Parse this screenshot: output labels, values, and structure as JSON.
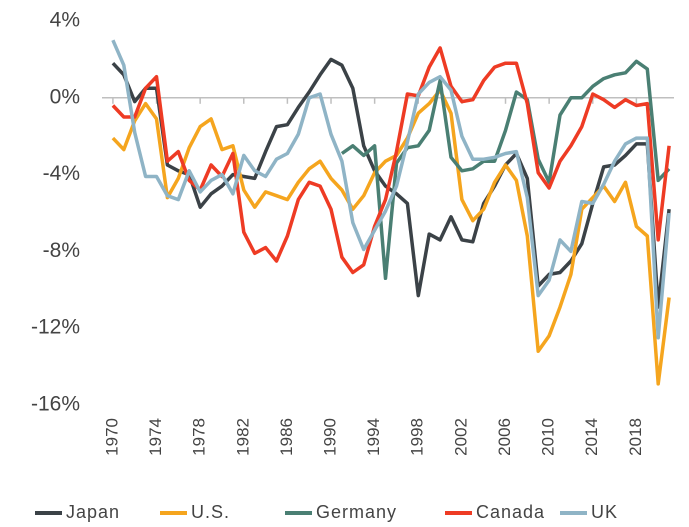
{
  "chart_data": {
    "type": "line",
    "x": [
      1970,
      1971,
      1972,
      1973,
      1974,
      1975,
      1976,
      1977,
      1978,
      1979,
      1980,
      1981,
      1982,
      1983,
      1984,
      1985,
      1986,
      1987,
      1988,
      1989,
      1990,
      1991,
      1992,
      1993,
      1994,
      1995,
      1996,
      1997,
      1998,
      1999,
      2000,
      2001,
      2002,
      2003,
      2004,
      2005,
      2006,
      2007,
      2008,
      2009,
      2010,
      2011,
      2012,
      2013,
      2014,
      2015,
      2016,
      2017,
      2018,
      2019,
      2020,
      2021
    ],
    "xlim": [
      1969,
      2022
    ],
    "xticks": [
      1970,
      1974,
      1978,
      1982,
      1986,
      1990,
      1994,
      1998,
      2002,
      2006,
      2010,
      2014,
      2018
    ],
    "ylim": [
      -16,
      4
    ],
    "yticks": [
      {
        "value": 4,
        "label": "4%"
      },
      {
        "value": 0,
        "label": "0%"
      },
      {
        "value": -4,
        "label": "-4%"
      },
      {
        "value": -8,
        "label": "-8%"
      },
      {
        "value": -12,
        "label": "-12%"
      },
      {
        "value": -16,
        "label": "-16%"
      }
    ],
    "legend": "bottom",
    "series": [
      {
        "name": "Japan",
        "color": "#3b4247",
        "values": [
          1.8,
          1.2,
          -0.2,
          0.5,
          0.5,
          -3.5,
          -3.8,
          -4.0,
          -5.7,
          -5.0,
          -4.6,
          -4.0,
          -4.1,
          -4.2,
          -2.8,
          -1.5,
          -1.4,
          -0.5,
          0.3,
          1.2,
          2.0,
          1.7,
          0.5,
          -2.5,
          -3.8,
          -4.6,
          -5.0,
          -5.5,
          -10.3,
          -7.1,
          -7.4,
          -6.2,
          -7.4,
          -7.5,
          -5.5,
          -4.6,
          -3.5,
          -2.9,
          -4.2,
          -9.8,
          -9.2,
          -9.1,
          -8.5,
          -7.6,
          -5.5,
          -3.6,
          -3.5,
          -3.0,
          -2.4,
          -2.4,
          -10.9,
          -5.8
        ]
      },
      {
        "name": "U.S.",
        "color": "#f5a51e",
        "values": [
          -2.1,
          -2.7,
          -1.2,
          -0.3,
          -1.1,
          -5.2,
          -4.2,
          -2.6,
          -1.5,
          -1.1,
          -2.7,
          -2.5,
          -4.8,
          -5.7,
          -4.9,
          -5.1,
          -5.3,
          -4.4,
          -3.7,
          -3.3,
          -4.2,
          -4.8,
          -5.8,
          -5.1,
          -3.9,
          -3.3,
          -3.0,
          -2.1,
          -0.8,
          -0.3,
          0.4,
          -0.8,
          -5.3,
          -6.4,
          -5.8,
          -4.4,
          -3.5,
          -4.3,
          -7.2,
          -13.2,
          -12.4,
          -10.9,
          -9.2,
          -5.8,
          -5.2,
          -4.6,
          -5.4,
          -4.4,
          -6.7,
          -7.2,
          -14.9,
          -10.4
        ]
      },
      {
        "name": "Germany",
        "color": "#4a7f73",
        "values": [
          null,
          null,
          null,
          null,
          null,
          null,
          null,
          null,
          null,
          null,
          null,
          null,
          null,
          null,
          null,
          null,
          null,
          null,
          null,
          null,
          null,
          -2.9,
          -2.5,
          -3.0,
          -2.5,
          -9.4,
          -3.4,
          -2.6,
          -2.5,
          -1.7,
          0.9,
          -3.1,
          -3.8,
          -3.7,
          -3.3,
          -3.3,
          -1.7,
          0.3,
          -0.1,
          -3.2,
          -4.4,
          -0.9,
          0.0,
          0.0,
          0.6,
          1.0,
          1.2,
          1.3,
          1.9,
          1.5,
          -4.3,
          -3.7
        ]
      },
      {
        "name": "Canada",
        "color": "#ee3b24",
        "values": [
          -0.4,
          -1.0,
          -1.0,
          0.5,
          1.1,
          -3.3,
          -2.8,
          -4.3,
          -4.8,
          -3.5,
          -4.1,
          -2.9,
          -7.0,
          -8.1,
          -7.8,
          -8.5,
          -7.2,
          -5.3,
          -4.4,
          -4.6,
          -5.8,
          -8.3,
          -9.1,
          -8.7,
          -6.7,
          -5.3,
          -2.8,
          0.2,
          0.1,
          1.6,
          2.6,
          0.6,
          -0.2,
          -0.1,
          0.9,
          1.6,
          1.8,
          1.8,
          -0.3,
          -3.9,
          -4.7,
          -3.3,
          -2.5,
          -1.5,
          0.2,
          -0.1,
          -0.5,
          -0.1,
          -0.4,
          -0.3,
          -7.4,
          -2.5
        ]
      },
      {
        "name": "UK",
        "color": "#8fb4c6",
        "values": [
          3.0,
          1.7,
          -1.8,
          -4.1,
          -4.1,
          -5.1,
          -5.3,
          -3.8,
          -4.9,
          -4.3,
          -4.0,
          -5.0,
          -3.0,
          -3.8,
          -4.1,
          -3.2,
          -2.9,
          -1.9,
          0.0,
          0.2,
          -1.9,
          -3.3,
          -6.5,
          -7.9,
          -6.9,
          -5.9,
          -4.6,
          -2.3,
          0.2,
          0.8,
          1.1,
          0.4,
          -2.0,
          -3.2,
          -3.2,
          -3.1,
          -2.9,
          -2.8,
          -5.2,
          -10.3,
          -9.5,
          -7.4,
          -8.0,
          -5.4,
          -5.5,
          -4.5,
          -3.3,
          -2.4,
          -2.1,
          -2.1,
          -12.5,
          -6.0
        ]
      }
    ]
  }
}
